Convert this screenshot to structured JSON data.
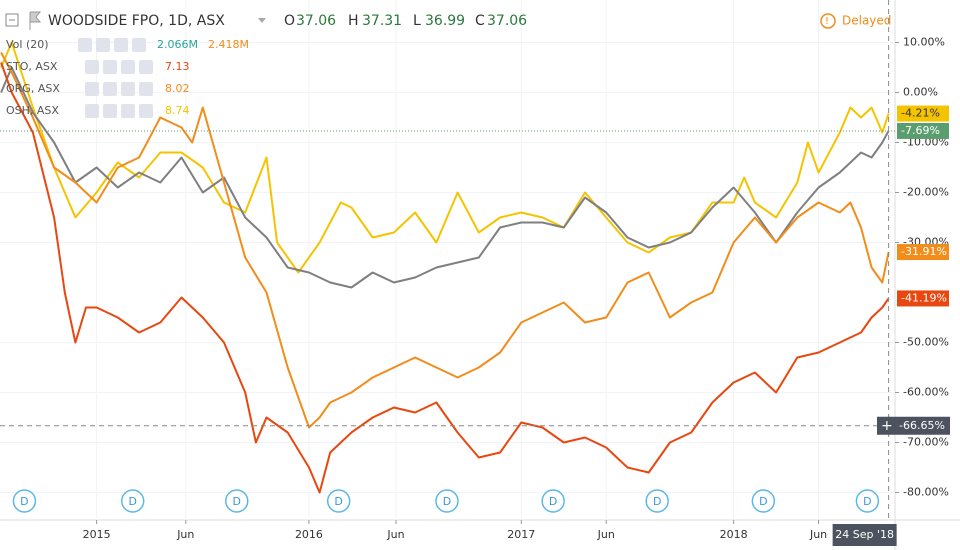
{
  "chart_data": {
    "type": "line",
    "title": "WOODSIDE FPO, 1D, ASX",
    "ohlc": [
      {
        "label": "O",
        "value": "37.06"
      },
      {
        "label": "H",
        "value": "37.31"
      },
      {
        "label": "L",
        "value": "36.99"
      },
      {
        "label": "C",
        "value": "37.06"
      }
    ],
    "status": "Delayed",
    "volume": {
      "name": "Vol (20)",
      "values": [
        "2.066M",
        "2.418M"
      ]
    },
    "xlim": [
      2014.545,
      2018.76
    ],
    "ylim": [
      -85.5,
      18.5
    ],
    "xticks": [
      {
        "value": 2015,
        "label": "2015"
      },
      {
        "value": 2015.42,
        "label": "Jun"
      },
      {
        "value": 2016,
        "label": "2016"
      },
      {
        "value": 2016.41,
        "label": "Jun"
      },
      {
        "value": 2017,
        "label": "2017"
      },
      {
        "value": 2017.4,
        "label": "Jun"
      },
      {
        "value": 2018,
        "label": "2018"
      },
      {
        "value": 2018.4,
        "label": "Jun"
      }
    ],
    "yticks": [
      {
        "value": 10,
        "label": "10.00%"
      },
      {
        "value": 0,
        "label": "0.00%"
      },
      {
        "value": -10,
        "label": "-10.00%"
      },
      {
        "value": -20,
        "label": "-20.00%"
      },
      {
        "value": -30,
        "label": "-30.00%"
      },
      {
        "value": -50,
        "label": "-50.00%"
      },
      {
        "value": -60,
        "label": "-60.00%"
      },
      {
        "value": -70,
        "label": "-70.00%"
      },
      {
        "value": -80,
        "label": "-80.00%"
      }
    ],
    "crosshair": {
      "x": 2018.73,
      "x_label": "24 Sep '18",
      "y": -66.65,
      "y_label": "-66.65%"
    },
    "dividends": {
      "label": "D",
      "x": [
        2014.66,
        2015.17,
        2015.66,
        2016.14,
        2016.65,
        2017.15,
        2017.64,
        2018.14,
        2018.63
      ]
    },
    "series": [
      {
        "name": "OSH, ASX",
        "price": "8.74",
        "color": "#f5c400",
        "last_label": "-4.21%",
        "x": [
          2014.55,
          2014.6,
          2014.7,
          2014.8,
          2014.9,
          2015.0,
          2015.1,
          2015.2,
          2015.3,
          2015.4,
          2015.5,
          2015.6,
          2015.7,
          2015.8,
          2015.85,
          2015.95,
          2016.05,
          2016.15,
          2016.2,
          2016.3,
          2016.4,
          2016.5,
          2016.6,
          2016.7,
          2016.8,
          2016.9,
          2017.0,
          2017.1,
          2017.2,
          2017.3,
          2017.4,
          2017.5,
          2017.6,
          2017.7,
          2017.8,
          2017.9,
          2018.0,
          2018.05,
          2018.1,
          2018.2,
          2018.3,
          2018.35,
          2018.4,
          2018.5,
          2018.55,
          2018.6,
          2018.65,
          2018.7,
          2018.73
        ],
        "values": [
          5,
          10,
          -3,
          -15,
          -25,
          -20,
          -14,
          -17,
          -12,
          -12,
          -15,
          -22,
          -24,
          -13,
          -30,
          -36,
          -30,
          -22,
          -23,
          -29,
          -28,
          -24,
          -30,
          -20,
          -28,
          -25,
          -24,
          -25,
          -27,
          -20,
          -25,
          -30,
          -32,
          -29,
          -28,
          -22,
          -22,
          -17,
          -22,
          -25,
          -18,
          -10,
          -16,
          -8,
          -3,
          -5,
          -3,
          -8,
          -4.21
        ]
      },
      {
        "name": "WOODSIDE FPO",
        "color": "#7f7f7f",
        "last_label": "-7.69%",
        "x": [
          2014.55,
          2014.6,
          2014.7,
          2014.8,
          2014.9,
          2015.0,
          2015.1,
          2015.2,
          2015.3,
          2015.4,
          2015.5,
          2015.6,
          2015.7,
          2015.8,
          2015.9,
          2016.0,
          2016.1,
          2016.2,
          2016.3,
          2016.4,
          2016.5,
          2016.6,
          2016.7,
          2016.8,
          2016.9,
          2017.0,
          2017.1,
          2017.2,
          2017.3,
          2017.4,
          2017.5,
          2017.6,
          2017.7,
          2017.8,
          2017.9,
          2018.0,
          2018.1,
          2018.2,
          2018.3,
          2018.4,
          2018.5,
          2018.6,
          2018.65,
          2018.7,
          2018.73
        ],
        "values": [
          0,
          5,
          -4,
          -10,
          -18,
          -15,
          -19,
          -16,
          -18,
          -13,
          -20,
          -17,
          -25,
          -29,
          -35,
          -36,
          -38,
          -39,
          -36,
          -38,
          -37,
          -35,
          -34,
          -33,
          -27,
          -26,
          -26,
          -27,
          -21,
          -24,
          -29,
          -31,
          -30,
          -28,
          -23,
          -19,
          -24,
          -30,
          -24,
          -19,
          -16,
          -12,
          -13,
          -10,
          -7.69
        ]
      },
      {
        "name": "ORG, ASX",
        "price": "8.02",
        "color": "#f28c1a",
        "last_label": "-31.91%",
        "x": [
          2014.55,
          2014.6,
          2014.7,
          2014.8,
          2014.9,
          2015.0,
          2015.1,
          2015.2,
          2015.3,
          2015.4,
          2015.45,
          2015.5,
          2015.6,
          2015.7,
          2015.8,
          2015.9,
          2016.0,
          2016.05,
          2016.1,
          2016.2,
          2016.3,
          2016.4,
          2016.5,
          2016.6,
          2016.7,
          2016.8,
          2016.9,
          2017.0,
          2017.1,
          2017.2,
          2017.3,
          2017.4,
          2017.5,
          2017.6,
          2017.7,
          2017.8,
          2017.9,
          2018.0,
          2018.1,
          2018.2,
          2018.3,
          2018.4,
          2018.5,
          2018.55,
          2018.6,
          2018.65,
          2018.7,
          2018.73
        ],
        "values": [
          8,
          4,
          -5,
          -15,
          -18,
          -22,
          -15,
          -13,
          -5,
          -7,
          -10,
          -3,
          -18,
          -33,
          -40,
          -55,
          -67,
          -65,
          -62,
          -60,
          -57,
          -55,
          -53,
          -55,
          -57,
          -55,
          -52,
          -46,
          -44,
          -42,
          -46,
          -45,
          -38,
          -36,
          -45,
          -42,
          -40,
          -30,
          -25,
          -30,
          -25,
          -22,
          -24,
          -22,
          -27,
          -35,
          -38,
          -31.91
        ]
      },
      {
        "name": "STO, ASX",
        "price": "7.13",
        "color": "#e8470f",
        "last_label": "-41.19%",
        "x": [
          2014.55,
          2014.6,
          2014.7,
          2014.8,
          2014.85,
          2014.9,
          2014.95,
          2015.0,
          2015.1,
          2015.2,
          2015.3,
          2015.4,
          2015.5,
          2015.6,
          2015.7,
          2015.75,
          2015.8,
          2015.9,
          2016.0,
          2016.05,
          2016.1,
          2016.2,
          2016.3,
          2016.4,
          2016.5,
          2016.6,
          2016.7,
          2016.8,
          2016.9,
          2017.0,
          2017.1,
          2017.2,
          2017.3,
          2017.4,
          2017.5,
          2017.6,
          2017.7,
          2017.8,
          2017.9,
          2018.0,
          2018.1,
          2018.2,
          2018.3,
          2018.4,
          2018.5,
          2018.6,
          2018.65,
          2018.7,
          2018.73
        ],
        "values": [
          6,
          0,
          -8,
          -25,
          -40,
          -50,
          -43,
          -43,
          -45,
          -48,
          -46,
          -41,
          -45,
          -50,
          -60,
          -70,
          -65,
          -68,
          -75,
          -80,
          -72,
          -68,
          -65,
          -63,
          -64,
          -62,
          -68,
          -73,
          -72,
          -66,
          -67,
          -70,
          -69,
          -71,
          -75,
          -76,
          -70,
          -68,
          -62,
          -58,
          -56,
          -60,
          -53,
          -52,
          -50,
          -48,
          -45,
          -43,
          -41.19
        ]
      }
    ]
  }
}
